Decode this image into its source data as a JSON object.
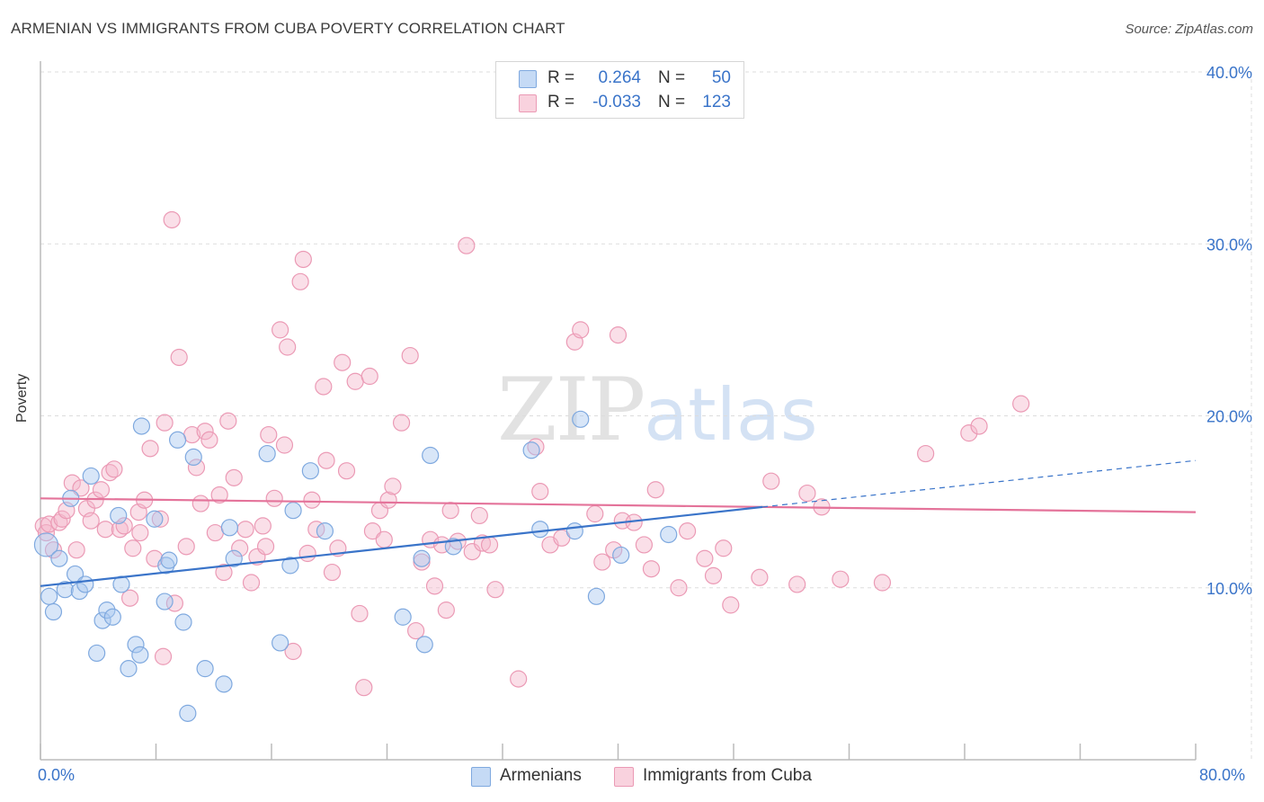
{
  "title": "ARMENIAN VS IMMIGRANTS FROM CUBA POVERTY CORRELATION CHART",
  "source": "Source: ZipAtlas.com",
  "watermark": {
    "zip": "ZIP",
    "atlas": "atlas"
  },
  "legend": {
    "rows": [
      {
        "r_label": "R =",
        "r_value": "0.264",
        "n_label": "N =",
        "n_value": "50",
        "color": "#a9c8f0"
      },
      {
        "r_label": "R =",
        "r_value": "-0.033",
        "n_label": "N =",
        "n_value": "123",
        "color": "#f5b8cb"
      }
    ]
  },
  "bottom_legend": {
    "series1": "Armenians",
    "series2": "Immigrants from Cuba"
  },
  "x_ticks": {
    "left": "0.0%",
    "right": "80.0%"
  },
  "colors": {
    "blue": "#3a74c9",
    "blue_fill": "#a9c8f0",
    "pink": "#e4739a",
    "pink_fill": "#f5b8cb",
    "grid": "#dddddd"
  },
  "chart_data": {
    "type": "scatter",
    "title": "ARMENIAN VS IMMIGRANTS FROM CUBA POVERTY CORRELATION CHART",
    "xlabel": "",
    "ylabel": "Poverty",
    "xlim": [
      0,
      80
    ],
    "ylim": [
      0,
      40
    ],
    "y_ticks": [
      "10.0%",
      "20.0%",
      "30.0%",
      "40.0%"
    ],
    "y_tick_values": [
      10,
      20,
      30,
      40
    ],
    "grid": true,
    "series": [
      {
        "name": "Armenians",
        "color": "#3a74c9",
        "trend": {
          "x": [
            0,
            50
          ],
          "y": [
            10.1,
            14.7
          ],
          "extended_x": [
            50,
            80
          ],
          "extended_y": [
            14.7,
            17.4
          ]
        },
        "points": [
          [
            0.4,
            12.5
          ],
          [
            0.6,
            9.5
          ],
          [
            0.9,
            8.6
          ],
          [
            1.3,
            11.7
          ],
          [
            1.7,
            9.9
          ],
          [
            2.4,
            10.8
          ],
          [
            2.7,
            9.8
          ],
          [
            2.1,
            15.2
          ],
          [
            3.1,
            10.2
          ],
          [
            3.5,
            16.5
          ],
          [
            3.9,
            6.2
          ],
          [
            4.3,
            8.1
          ],
          [
            4.6,
            8.7
          ],
          [
            5.0,
            8.3
          ],
          [
            5.4,
            14.2
          ],
          [
            5.6,
            10.2
          ],
          [
            6.1,
            5.3
          ],
          [
            6.6,
            6.7
          ],
          [
            6.9,
            6.1
          ],
          [
            7.0,
            19.4
          ],
          [
            7.9,
            14.0
          ],
          [
            8.7,
            11.3
          ],
          [
            8.9,
            11.6
          ],
          [
            8.6,
            9.2
          ],
          [
            9.5,
            18.6
          ],
          [
            9.9,
            8.0
          ],
          [
            10.2,
            2.7
          ],
          [
            10.6,
            17.6
          ],
          [
            11.4,
            5.3
          ],
          [
            12.7,
            4.4
          ],
          [
            13.1,
            13.5
          ],
          [
            13.4,
            11.7
          ],
          [
            15.7,
            17.8
          ],
          [
            16.6,
            6.8
          ],
          [
            17.3,
            11.3
          ],
          [
            17.5,
            14.5
          ],
          [
            18.7,
            16.8
          ],
          [
            19.7,
            13.3
          ],
          [
            25.1,
            8.3
          ],
          [
            26.4,
            11.7
          ],
          [
            26.6,
            6.7
          ],
          [
            27.0,
            17.7
          ],
          [
            28.6,
            12.4
          ],
          [
            34.0,
            18.0
          ],
          [
            34.6,
            13.4
          ],
          [
            37.0,
            13.3
          ],
          [
            37.4,
            19.8
          ],
          [
            38.5,
            9.5
          ],
          [
            40.2,
            11.9
          ],
          [
            43.5,
            13.1
          ]
        ]
      },
      {
        "name": "Immigrants from Cuba",
        "color": "#e4739a",
        "trend": {
          "x": [
            0,
            80
          ],
          "y": [
            15.2,
            14.4
          ]
        },
        "points": [
          [
            0.2,
            13.6
          ],
          [
            0.4,
            13.2
          ],
          [
            0.6,
            13.7
          ],
          [
            0.9,
            12.2
          ],
          [
            1.3,
            13.8
          ],
          [
            1.5,
            14.0
          ],
          [
            1.8,
            14.5
          ],
          [
            2.2,
            16.1
          ],
          [
            2.5,
            12.2
          ],
          [
            2.8,
            15.8
          ],
          [
            3.2,
            14.6
          ],
          [
            3.5,
            13.9
          ],
          [
            3.8,
            15.1
          ],
          [
            4.2,
            15.7
          ],
          [
            4.5,
            13.4
          ],
          [
            4.8,
            16.7
          ],
          [
            5.1,
            16.9
          ],
          [
            5.5,
            13.4
          ],
          [
            5.8,
            13.6
          ],
          [
            6.2,
            9.4
          ],
          [
            6.4,
            12.3
          ],
          [
            6.8,
            14.4
          ],
          [
            6.9,
            13.2
          ],
          [
            7.2,
            15.1
          ],
          [
            7.6,
            18.1
          ],
          [
            7.9,
            11.7
          ],
          [
            8.3,
            14.0
          ],
          [
            8.5,
            6.0
          ],
          [
            8.6,
            19.6
          ],
          [
            9.1,
            31.4
          ],
          [
            9.3,
            9.1
          ],
          [
            9.6,
            23.4
          ],
          [
            10.1,
            12.4
          ],
          [
            10.5,
            18.9
          ],
          [
            10.8,
            17.0
          ],
          [
            11.1,
            14.9
          ],
          [
            11.4,
            19.1
          ],
          [
            11.7,
            18.6
          ],
          [
            12.1,
            13.2
          ],
          [
            12.4,
            15.4
          ],
          [
            12.7,
            10.9
          ],
          [
            13.0,
            19.7
          ],
          [
            13.4,
            16.4
          ],
          [
            13.8,
            12.3
          ],
          [
            14.2,
            13.4
          ],
          [
            14.6,
            10.3
          ],
          [
            15.0,
            11.8
          ],
          [
            15.4,
            13.6
          ],
          [
            15.6,
            12.4
          ],
          [
            15.8,
            18.9
          ],
          [
            16.2,
            15.2
          ],
          [
            16.6,
            25.0
          ],
          [
            16.9,
            18.3
          ],
          [
            17.1,
            24.0
          ],
          [
            17.5,
            6.3
          ],
          [
            18.0,
            27.8
          ],
          [
            18.2,
            29.1
          ],
          [
            18.5,
            12.0
          ],
          [
            18.8,
            15.1
          ],
          [
            19.1,
            13.4
          ],
          [
            19.6,
            21.7
          ],
          [
            19.8,
            17.4
          ],
          [
            20.2,
            10.9
          ],
          [
            20.6,
            12.3
          ],
          [
            20.9,
            23.1
          ],
          [
            21.2,
            16.8
          ],
          [
            21.8,
            22.0
          ],
          [
            22.1,
            8.5
          ],
          [
            22.4,
            4.2
          ],
          [
            22.8,
            22.3
          ],
          [
            23.0,
            13.3
          ],
          [
            23.5,
            14.5
          ],
          [
            23.8,
            12.8
          ],
          [
            24.1,
            15.1
          ],
          [
            24.4,
            15.9
          ],
          [
            25.0,
            19.6
          ],
          [
            25.6,
            23.5
          ],
          [
            26.0,
            7.5
          ],
          [
            26.4,
            11.5
          ],
          [
            27.0,
            12.8
          ],
          [
            27.3,
            10.1
          ],
          [
            27.8,
            12.5
          ],
          [
            28.1,
            8.7
          ],
          [
            28.4,
            14.5
          ],
          [
            28.9,
            12.7
          ],
          [
            29.5,
            29.9
          ],
          [
            29.9,
            12.1
          ],
          [
            30.4,
            14.2
          ],
          [
            30.6,
            12.6
          ],
          [
            31.1,
            12.5
          ],
          [
            31.5,
            9.9
          ],
          [
            33.1,
            4.7
          ],
          [
            34.3,
            18.2
          ],
          [
            34.6,
            15.6
          ],
          [
            35.3,
            12.5
          ],
          [
            36.1,
            12.9
          ],
          [
            37.0,
            24.3
          ],
          [
            37.4,
            25.0
          ],
          [
            38.4,
            14.3
          ],
          [
            38.9,
            11.5
          ],
          [
            39.7,
            12.2
          ],
          [
            40.0,
            24.7
          ],
          [
            40.3,
            13.9
          ],
          [
            41.1,
            13.8
          ],
          [
            41.8,
            12.5
          ],
          [
            42.3,
            11.1
          ],
          [
            42.6,
            15.7
          ],
          [
            44.2,
            10.0
          ],
          [
            44.8,
            13.3
          ],
          [
            46.0,
            11.7
          ],
          [
            46.6,
            10.7
          ],
          [
            47.3,
            12.3
          ],
          [
            47.8,
            9.0
          ],
          [
            49.8,
            10.6
          ],
          [
            50.6,
            16.2
          ],
          [
            52.4,
            10.2
          ],
          [
            53.1,
            15.5
          ],
          [
            54.1,
            14.7
          ],
          [
            55.4,
            10.5
          ],
          [
            58.3,
            10.3
          ],
          [
            61.3,
            17.8
          ],
          [
            64.3,
            19.0
          ],
          [
            65.0,
            19.4
          ],
          [
            67.9,
            20.7
          ]
        ]
      }
    ]
  }
}
